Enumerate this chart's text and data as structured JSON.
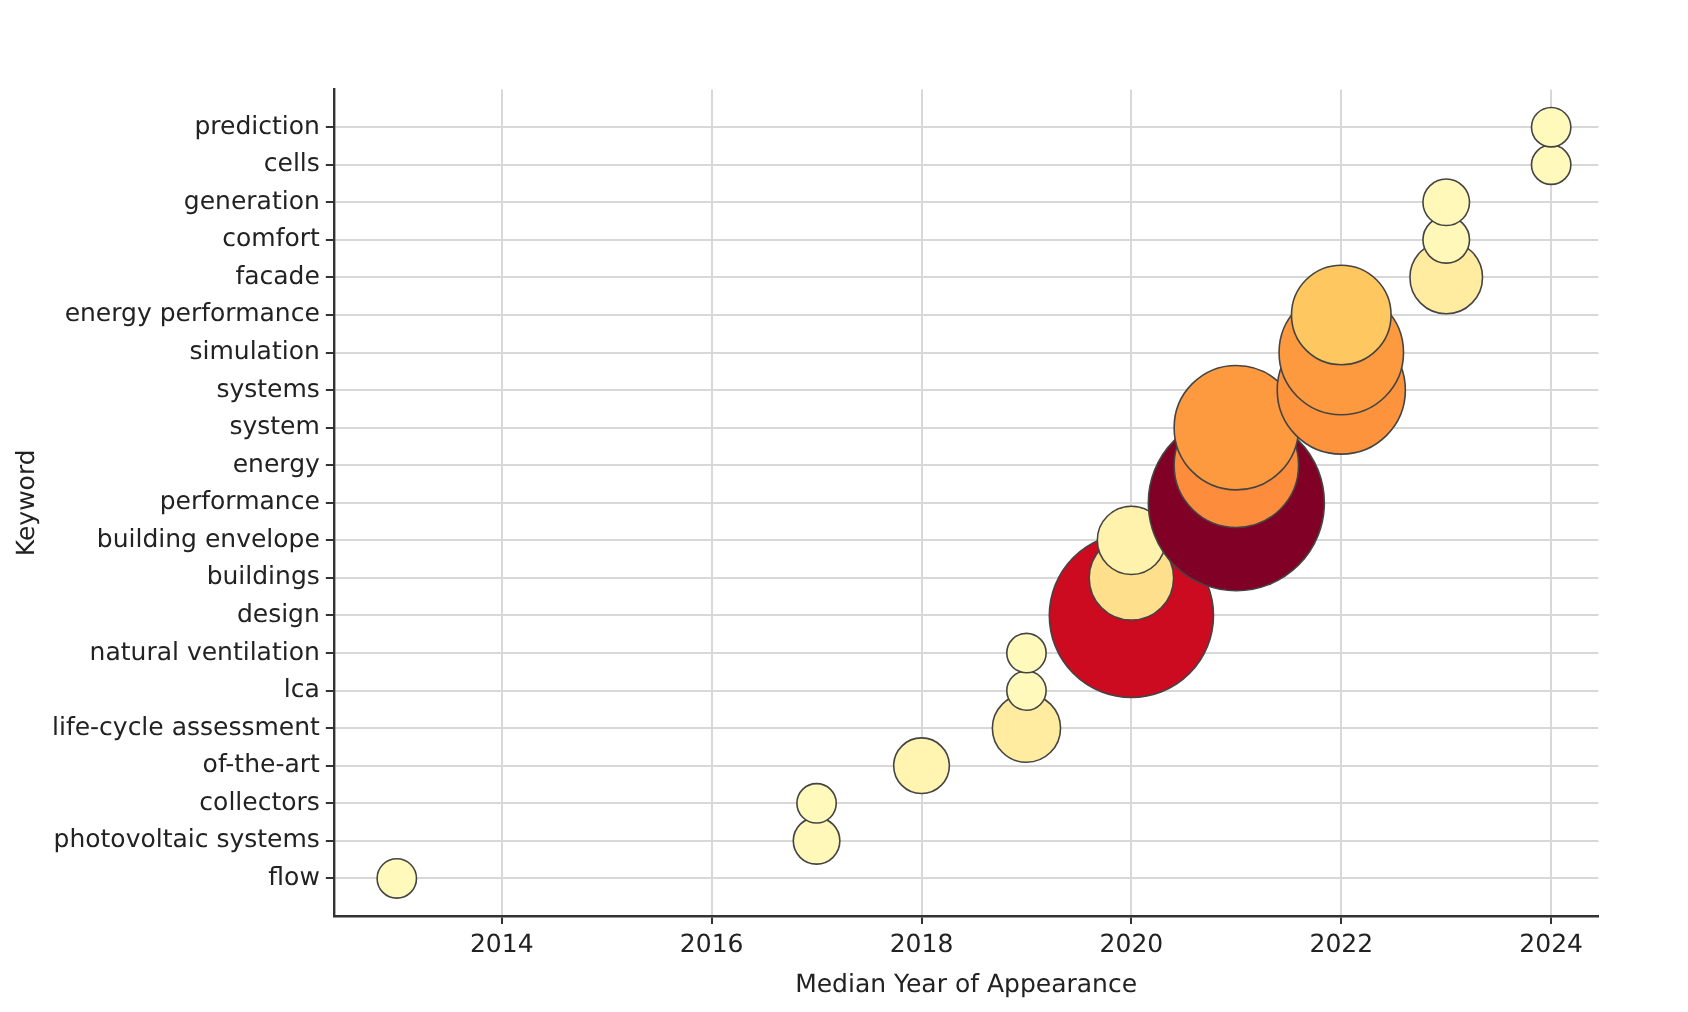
{
  "chart_data": {
    "type": "bubble",
    "orientation": "horizontal",
    "xlabel": "Median Year of Appearance",
    "ylabel": "Keyword",
    "categories": [
      "prediction",
      "cells",
      "generation",
      "comfort",
      "facade",
      "energy performance",
      "simulation",
      "systems",
      "system",
      "energy",
      "performance",
      "building envelope",
      "buildings",
      "design",
      "natural ventilation",
      "lca",
      "life-cycle assessment",
      "of-the-art",
      "collectors",
      "photovoltaic systems",
      "flow"
    ],
    "values": [
      2024,
      2024,
      2023,
      2023,
      2023,
      2022,
      2022,
      2022,
      2021,
      2021,
      2021,
      2020,
      2020,
      2020,
      2019,
      2019,
      2019,
      2018,
      2017,
      2017,
      2013
    ],
    "sizes": [
      0.05,
      0.05,
      0.07,
      0.07,
      0.17,
      0.32,
      0.5,
      0.53,
      0.5,
      0.5,
      1,
      0.15,
      0.23,
      0.87,
      0.05,
      0.05,
      0.15,
      0.1,
      0.05,
      0.07,
      0.05
    ],
    "colors": [
      "#fffabc",
      "#fffabc",
      "#fff8b8",
      "#fff8b8",
      "#ffeca0",
      "#fec760",
      "#fd9a40",
      "#fd933c",
      "#fd9a40",
      "#fd8d3c",
      "#800026",
      "#fff2ac",
      "#fee08c",
      "#cc0a20",
      "#fffabc",
      "#fffabc",
      "#ffeca0",
      "#fff4b0",
      "#fffabc",
      "#fff8b8",
      "#fffabc"
    ],
    "xlim": [
      2012.4,
      2024.45
    ],
    "xticks": [
      2014,
      2016,
      2018,
      2020,
      2022,
      2024
    ],
    "grid": true,
    "legend": false
  }
}
